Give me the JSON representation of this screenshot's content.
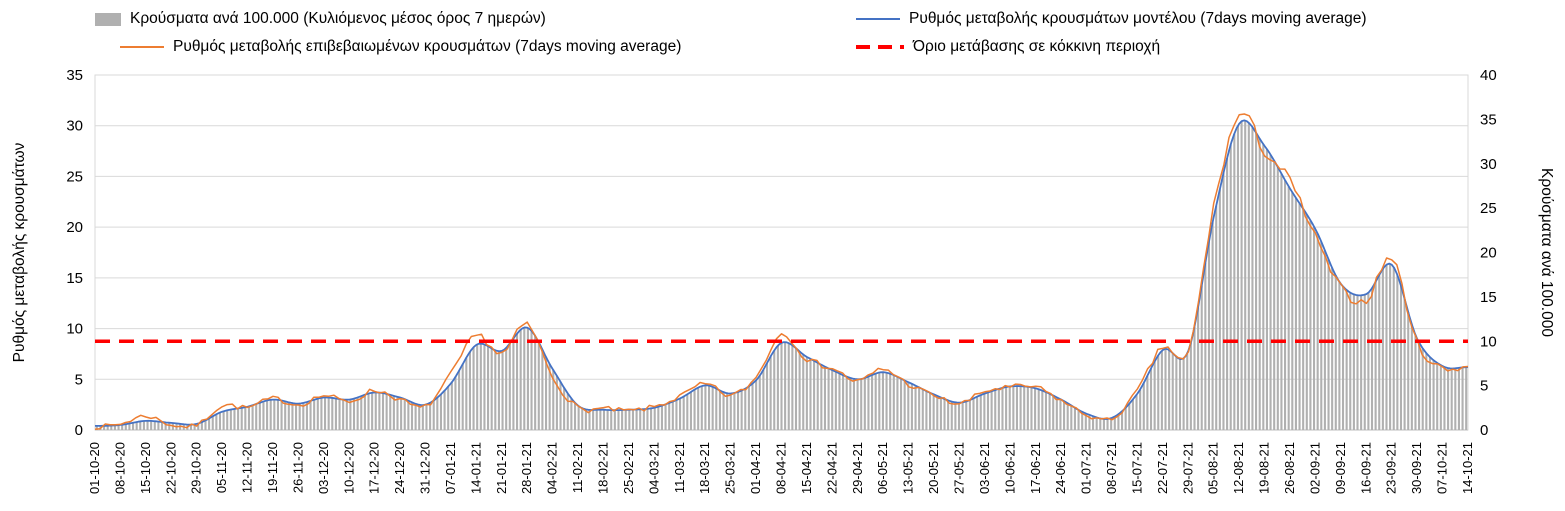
{
  "legend": {
    "items": [
      {
        "label": "Κρούσματα ανά 100.000 (Κυλιόμενος μέσος όρος 7 ημερών)",
        "swatch": "gray-bar"
      },
      {
        "label": "Ρυθμός μεταβολής κρουσμάτων μοντέλου (7days moving average)",
        "swatch": "blue-line"
      },
      {
        "label": "Ρυθμός μεταβολής επιβεβαιωμένων κρουσμάτων (7days moving average)",
        "swatch": "orange-line"
      },
      {
        "label": "Όριο μετάβασης σε κόκκινη περιοχή",
        "swatch": "red-dash"
      }
    ]
  },
  "colors": {
    "bar": "#b0b0b0",
    "model_line": "#4472c4",
    "confirmed_line": "#ED7D31",
    "threshold_line": "#FF0000",
    "grid": "#d9d9d9",
    "axis": "#8c8c8c",
    "text": "#000000"
  },
  "chart_data": {
    "type": "bar+line",
    "x_dates": [
      "01-10-20",
      "08-10-20",
      "15-10-20",
      "22-10-20",
      "29-10-20",
      "05-11-20",
      "12-11-20",
      "19-11-20",
      "26-11-20",
      "03-12-20",
      "10-12-20",
      "17-12-20",
      "24-12-20",
      "31-12-20",
      "07-01-21",
      "14-01-21",
      "21-01-21",
      "28-01-21",
      "04-02-21",
      "11-02-21",
      "18-02-21",
      "25-02-21",
      "04-03-21",
      "11-03-21",
      "18-03-21",
      "25-03-21",
      "01-04-21",
      "08-04-21",
      "15-04-21",
      "22-04-21",
      "29-04-21",
      "06-05-21",
      "13-05-21",
      "20-05-21",
      "27-05-21",
      "03-06-21",
      "10-06-21",
      "17-06-21",
      "24-06-21",
      "01-07-21",
      "08-07-21",
      "15-07-21",
      "22-07-21",
      "29-07-21",
      "05-08-21",
      "12-08-21",
      "19-08-21",
      "26-08-21",
      "02-09-21",
      "09-09-21",
      "16-09-21",
      "23-09-21",
      "30-09-21",
      "07-10-21",
      "14-10-21"
    ],
    "left_axis": {
      "label": "Ρυθμός μεταβολής κρουσμάτων",
      "min": 0,
      "max": 35,
      "step": 5,
      "ticks": [
        0,
        5,
        10,
        15,
        20,
        25,
        30,
        35
      ]
    },
    "right_axis": {
      "label": "Κρούσματα ανά 100.000",
      "min": 0,
      "max": 40,
      "step": 5,
      "ticks": [
        0,
        5,
        10,
        15,
        20,
        25,
        30,
        35,
        40
      ]
    },
    "threshold": {
      "name": "Όριο μετάβασης σε κόκκινη περιοχή",
      "axis": "right",
      "value": 10
    },
    "series": [
      {
        "name": "Κρούσματα ανά 100.000 (Κυλιόμενος μέσος όρος 7 ημερών)",
        "type": "bar",
        "axis": "right",
        "values": [
          0.5,
          0.6,
          1.0,
          0.8,
          0.7,
          2.1,
          2.6,
          3.4,
          3.0,
          3.7,
          3.4,
          4.2,
          3.7,
          2.9,
          5.3,
          9.6,
          8.9,
          11.5,
          6.9,
          2.7,
          2.3,
          2.3,
          2.5,
          3.5,
          5.0,
          4.1,
          5.6,
          9.8,
          8.2,
          6.7,
          5.7,
          6.5,
          5.4,
          4.0,
          3.1,
          4.1,
          4.9,
          4.7,
          3.4,
          1.8,
          1.4,
          4.1,
          9.0,
          8.9,
          24.0,
          34.5,
          32.0,
          27.2,
          22.6,
          16.5,
          15.3,
          18.6,
          10.3,
          7.2,
          7.1
        ]
      },
      {
        "name": "Ρυθμός μεταβολής κρουσμάτων μοντέλου (7days moving average)",
        "type": "line",
        "axis": "left",
        "values": [
          0.4,
          0.5,
          0.9,
          0.7,
          0.6,
          1.8,
          2.3,
          3.0,
          2.6,
          3.2,
          3.0,
          3.7,
          3.2,
          2.5,
          4.6,
          8.4,
          7.8,
          10.1,
          6.0,
          2.4,
          2.0,
          2.0,
          2.2,
          3.1,
          4.4,
          3.6,
          4.9,
          8.6,
          7.2,
          5.9,
          5.0,
          5.7,
          4.7,
          3.5,
          2.7,
          3.6,
          4.3,
          4.1,
          3.0,
          1.6,
          1.2,
          3.6,
          7.9,
          7.8,
          21.0,
          30.2,
          28.0,
          23.8,
          19.8,
          14.4,
          13.4,
          16.3,
          9.0,
          6.3,
          6.2
        ]
      },
      {
        "name": "Ρυθμός μεταβολής επιβεβαιωμένων κρουσμάτων (7days moving average)",
        "type": "line",
        "axis": "left",
        "values": [
          0.3,
          0.6,
          1.4,
          0.5,
          0.5,
          2.4,
          2.2,
          3.1,
          2.5,
          3.4,
          2.8,
          3.9,
          3.0,
          2.3,
          5.5,
          9.3,
          7.5,
          10.4,
          5.2,
          2.2,
          2.1,
          1.9,
          2.3,
          3.3,
          4.5,
          3.4,
          5.2,
          9.5,
          7.0,
          6.1,
          4.8,
          6.0,
          4.5,
          3.4,
          2.6,
          3.8,
          4.2,
          4.2,
          2.9,
          1.5,
          1.1,
          3.9,
          8.2,
          7.6,
          22.0,
          31.0,
          27.5,
          24.5,
          19.0,
          14.0,
          12.8,
          17.0,
          8.6,
          6.1,
          6.3
        ]
      }
    ]
  }
}
